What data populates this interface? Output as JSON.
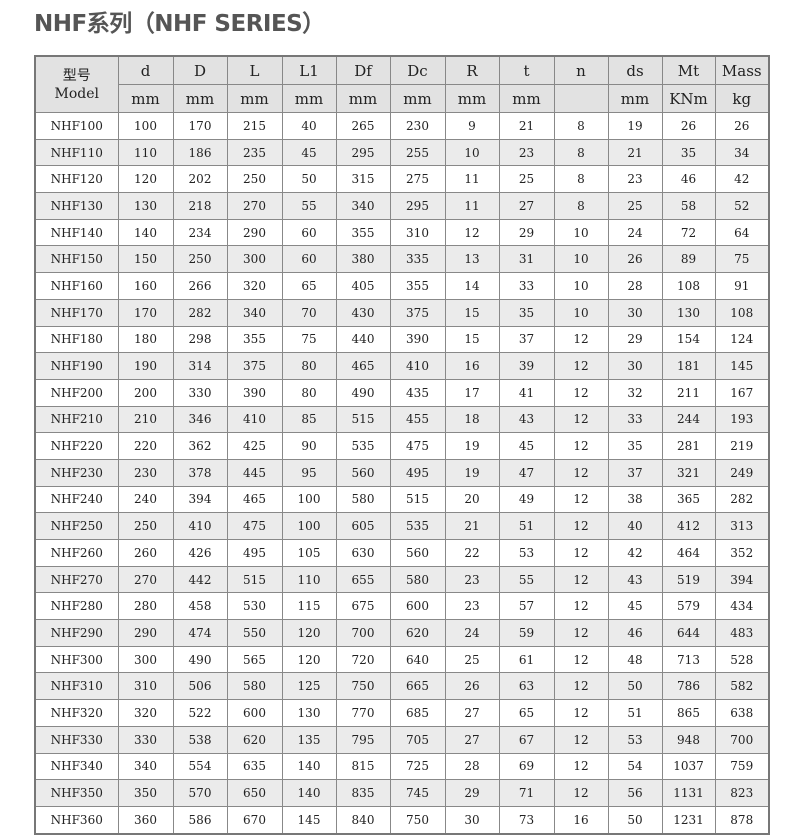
{
  "title": "NHF系列（NHF SERIES）",
  "header": {
    "model_cn": "型号",
    "model_en": "Model",
    "columns": [
      "d",
      "D",
      "L",
      "L1",
      "Df",
      "Dc",
      "R",
      "t",
      "n",
      "ds",
      "Mt",
      "Mass"
    ],
    "units": [
      "mm",
      "mm",
      "mm",
      "mm",
      "mm",
      "mm",
      "mm",
      "mm",
      "",
      "mm",
      "KNm",
      "kg"
    ]
  },
  "rows": [
    [
      "NHF100",
      "100",
      "170",
      "215",
      "40",
      "265",
      "230",
      "9",
      "21",
      "8",
      "19",
      "26",
      "26"
    ],
    [
      "NHF110",
      "110",
      "186",
      "235",
      "45",
      "295",
      "255",
      "10",
      "23",
      "8",
      "21",
      "35",
      "34"
    ],
    [
      "NHF120",
      "120",
      "202",
      "250",
      "50",
      "315",
      "275",
      "11",
      "25",
      "8",
      "23",
      "46",
      "42"
    ],
    [
      "NHF130",
      "130",
      "218",
      "270",
      "55",
      "340",
      "295",
      "11",
      "27",
      "8",
      "25",
      "58",
      "52"
    ],
    [
      "NHF140",
      "140",
      "234",
      "290",
      "60",
      "355",
      "310",
      "12",
      "29",
      "10",
      "24",
      "72",
      "64"
    ],
    [
      "NHF150",
      "150",
      "250",
      "300",
      "60",
      "380",
      "335",
      "13",
      "31",
      "10",
      "26",
      "89",
      "75"
    ],
    [
      "NHF160",
      "160",
      "266",
      "320",
      "65",
      "405",
      "355",
      "14",
      "33",
      "10",
      "28",
      "108",
      "91"
    ],
    [
      "NHF170",
      "170",
      "282",
      "340",
      "70",
      "430",
      "375",
      "15",
      "35",
      "10",
      "30",
      "130",
      "108"
    ],
    [
      "NHF180",
      "180",
      "298",
      "355",
      "75",
      "440",
      "390",
      "15",
      "37",
      "12",
      "29",
      "154",
      "124"
    ],
    [
      "NHF190",
      "190",
      "314",
      "375",
      "80",
      "465",
      "410",
      "16",
      "39",
      "12",
      "30",
      "181",
      "145"
    ],
    [
      "NHF200",
      "200",
      "330",
      "390",
      "80",
      "490",
      "435",
      "17",
      "41",
      "12",
      "32",
      "211",
      "167"
    ],
    [
      "NHF210",
      "210",
      "346",
      "410",
      "85",
      "515",
      "455",
      "18",
      "43",
      "12",
      "33",
      "244",
      "193"
    ],
    [
      "NHF220",
      "220",
      "362",
      "425",
      "90",
      "535",
      "475",
      "19",
      "45",
      "12",
      "35",
      "281",
      "219"
    ],
    [
      "NHF230",
      "230",
      "378",
      "445",
      "95",
      "560",
      "495",
      "19",
      "47",
      "12",
      "37",
      "321",
      "249"
    ],
    [
      "NHF240",
      "240",
      "394",
      "465",
      "100",
      "580",
      "515",
      "20",
      "49",
      "12",
      "38",
      "365",
      "282"
    ],
    [
      "NHF250",
      "250",
      "410",
      "475",
      "100",
      "605",
      "535",
      "21",
      "51",
      "12",
      "40",
      "412",
      "313"
    ],
    [
      "NHF260",
      "260",
      "426",
      "495",
      "105",
      "630",
      "560",
      "22",
      "53",
      "12",
      "42",
      "464",
      "352"
    ],
    [
      "NHF270",
      "270",
      "442",
      "515",
      "110",
      "655",
      "580",
      "23",
      "55",
      "12",
      "43",
      "519",
      "394"
    ],
    [
      "NHF280",
      "280",
      "458",
      "530",
      "115",
      "675",
      "600",
      "23",
      "57",
      "12",
      "45",
      "579",
      "434"
    ],
    [
      "NHF290",
      "290",
      "474",
      "550",
      "120",
      "700",
      "620",
      "24",
      "59",
      "12",
      "46",
      "644",
      "483"
    ],
    [
      "NHF300",
      "300",
      "490",
      "565",
      "120",
      "720",
      "640",
      "25",
      "61",
      "12",
      "48",
      "713",
      "528"
    ],
    [
      "NHF310",
      "310",
      "506",
      "580",
      "125",
      "750",
      "665",
      "26",
      "63",
      "12",
      "50",
      "786",
      "582"
    ],
    [
      "NHF320",
      "320",
      "522",
      "600",
      "130",
      "770",
      "685",
      "27",
      "65",
      "12",
      "51",
      "865",
      "638"
    ],
    [
      "NHF330",
      "330",
      "538",
      "620",
      "135",
      "795",
      "705",
      "27",
      "67",
      "12",
      "53",
      "948",
      "700"
    ],
    [
      "NHF340",
      "340",
      "554",
      "635",
      "140",
      "815",
      "725",
      "28",
      "69",
      "12",
      "54",
      "1037",
      "759"
    ],
    [
      "NHF350",
      "350",
      "570",
      "650",
      "140",
      "835",
      "745",
      "29",
      "71",
      "12",
      "56",
      "1131",
      "823"
    ],
    [
      "NHF360",
      "360",
      "586",
      "670",
      "145",
      "840",
      "750",
      "30",
      "73",
      "16",
      "50",
      "1231",
      "878"
    ]
  ]
}
